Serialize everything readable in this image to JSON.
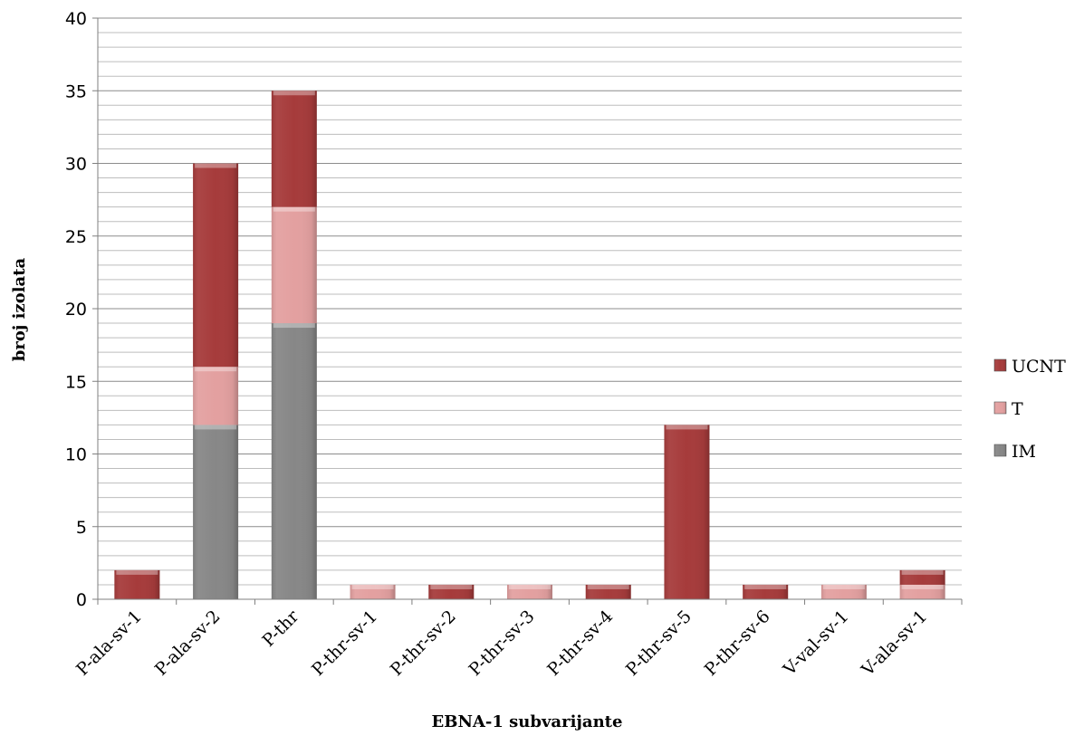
{
  "chart_data": {
    "type": "bar",
    "stacked": true,
    "categories": [
      "P-ala-sv-1",
      "P-ala-sv-2",
      "P-thr",
      "P-thr-sv-1",
      "P-thr-sv-2",
      "P-thr-sv-3",
      "P-thr-sv-4",
      "P-thr-sv-5",
      "P-thr-sv-6",
      "V-val-sv-1",
      "V-ala-sv-1"
    ],
    "series": [
      {
        "name": "IM",
        "color": "#878787",
        "values": [
          0,
          12,
          19,
          0,
          0,
          0,
          0,
          0,
          0,
          0,
          0
        ]
      },
      {
        "name": "T",
        "color": "#e3a0a0",
        "values": [
          0,
          4,
          8,
          1,
          0,
          1,
          0,
          0,
          0,
          1,
          1
        ]
      },
      {
        "name": "UCNT",
        "color": "#a63b3b",
        "values": [
          2,
          14,
          8,
          0,
          1,
          0,
          1,
          12,
          1,
          0,
          1
        ]
      }
    ],
    "xlabel": "EBNA-1 subvarijante",
    "ylabel": "broj izolata",
    "ylim": [
      0,
      40
    ],
    "yticks": [
      "0",
      "5",
      "10",
      "15",
      "20",
      "25",
      "30",
      "35",
      "40"
    ],
    "grid": true,
    "legend_position": "right",
    "legend_order": [
      "UCNT",
      "T",
      "IM"
    ]
  }
}
